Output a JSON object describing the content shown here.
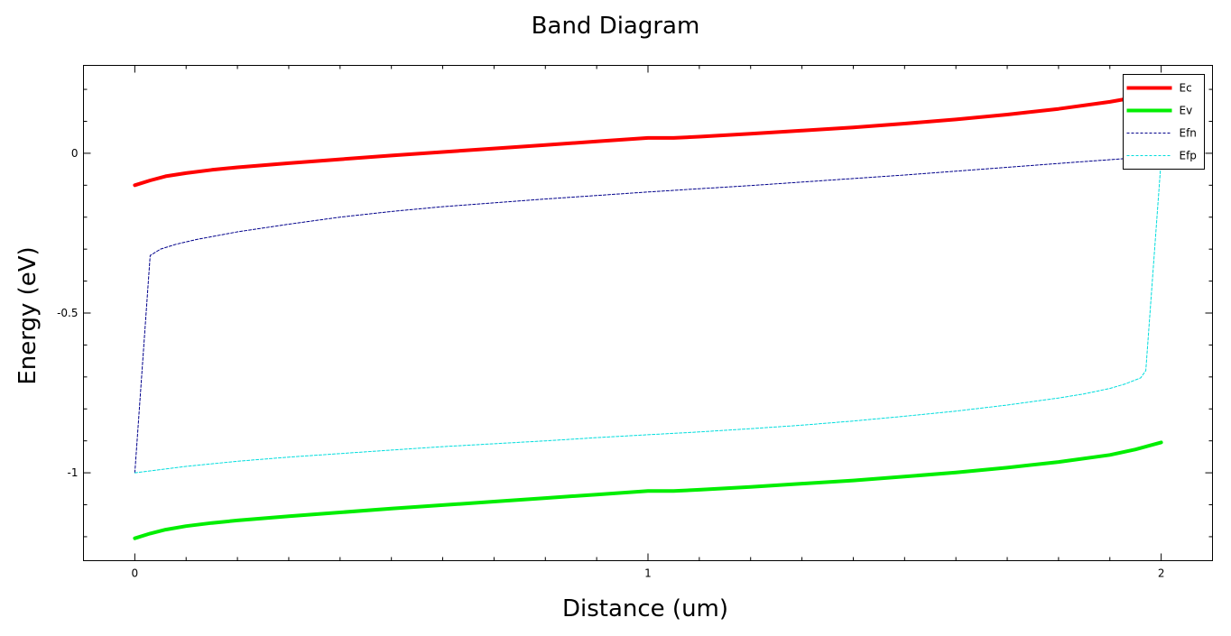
{
  "chart_data": {
    "type": "line",
    "title": "Band Diagram",
    "xlabel": "Distance (um)",
    "ylabel": "Energy (eV)",
    "xlim": [
      -0.1,
      2.1
    ],
    "ylim": [
      -1.275,
      0.275
    ],
    "xticks": [
      0,
      1,
      2
    ],
    "xtick_labels": [
      "0",
      "1",
      "2"
    ],
    "yticks": [
      0,
      -0.5,
      -1
    ],
    "ytick_labels": [
      "0",
      "-0.5",
      "-1"
    ],
    "grid": false,
    "legend_position": "top-right",
    "series": [
      {
        "name": "Ec",
        "color": "#ff0000",
        "style": "solid-thick",
        "x": [
          0,
          0.03,
          0.06,
          0.1,
          0.15,
          0.2,
          0.3,
          0.4,
          0.5,
          0.6,
          0.7,
          0.8,
          0.9,
          1.0,
          1.05,
          1.1,
          1.2,
          1.3,
          1.4,
          1.5,
          1.6,
          1.7,
          1.8,
          1.9,
          1.95,
          2.0
        ],
        "values": [
          -0.1,
          -0.085,
          -0.072,
          -0.062,
          -0.052,
          -0.044,
          -0.031,
          -0.019,
          -0.007,
          0.004,
          0.015,
          0.026,
          0.037,
          0.048,
          0.048,
          0.052,
          0.061,
          0.071,
          0.081,
          0.093,
          0.106,
          0.121,
          0.139,
          0.161,
          0.175,
          0.19
        ]
      },
      {
        "name": "Ev",
        "color": "#00ee00",
        "style": "solid-thick",
        "x": [
          0,
          0.03,
          0.06,
          0.1,
          0.15,
          0.2,
          0.3,
          0.4,
          0.5,
          0.6,
          0.7,
          0.8,
          0.9,
          1.0,
          1.05,
          1.1,
          1.2,
          1.3,
          1.4,
          1.5,
          1.6,
          1.7,
          1.8,
          1.9,
          1.95,
          2.0
        ],
        "values": [
          -1.205,
          -1.19,
          -1.178,
          -1.167,
          -1.157,
          -1.149,
          -1.136,
          -1.124,
          -1.112,
          -1.101,
          -1.09,
          -1.079,
          -1.068,
          -1.057,
          -1.057,
          -1.053,
          -1.044,
          -1.034,
          -1.024,
          -1.012,
          -0.999,
          -0.984,
          -0.966,
          -0.944,
          -0.927,
          -0.905
        ]
      },
      {
        "name": "Efn",
        "color": "#00008b",
        "style": "dashed-thin",
        "x": [
          0,
          0.03,
          0.05,
          0.08,
          0.12,
          0.2,
          0.3,
          0.4,
          0.5,
          0.6,
          0.7,
          0.8,
          0.9,
          1.0,
          1.1,
          1.2,
          1.3,
          1.4,
          1.5,
          1.6,
          1.7,
          1.8,
          1.9,
          1.97
        ],
        "values": [
          -1.0,
          -0.32,
          -0.3,
          -0.285,
          -0.27,
          -0.246,
          -0.222,
          -0.2,
          -0.182,
          -0.167,
          -0.155,
          -0.143,
          -0.132,
          -0.121,
          -0.111,
          -0.101,
          -0.09,
          -0.079,
          -0.068,
          -0.056,
          -0.044,
          -0.032,
          -0.02,
          -0.012
        ]
      },
      {
        "name": "Efp",
        "color": "#00dddd",
        "style": "dashed-thin",
        "x": [
          0,
          0.05,
          0.1,
          0.2,
          0.3,
          0.4,
          0.5,
          0.6,
          0.7,
          0.8,
          0.9,
          1.0,
          1.1,
          1.2,
          1.3,
          1.4,
          1.5,
          1.6,
          1.7,
          1.8,
          1.85,
          1.9,
          1.93,
          1.96,
          1.97,
          2.0
        ],
        "values": [
          -1.0,
          -0.99,
          -0.98,
          -0.964,
          -0.951,
          -0.94,
          -0.929,
          -0.918,
          -0.909,
          -0.9,
          -0.89,
          -0.881,
          -0.872,
          -0.862,
          -0.851,
          -0.838,
          -0.823,
          -0.807,
          -0.788,
          -0.766,
          -0.753,
          -0.736,
          -0.722,
          -0.703,
          -0.68,
          -0.02
        ]
      }
    ]
  }
}
